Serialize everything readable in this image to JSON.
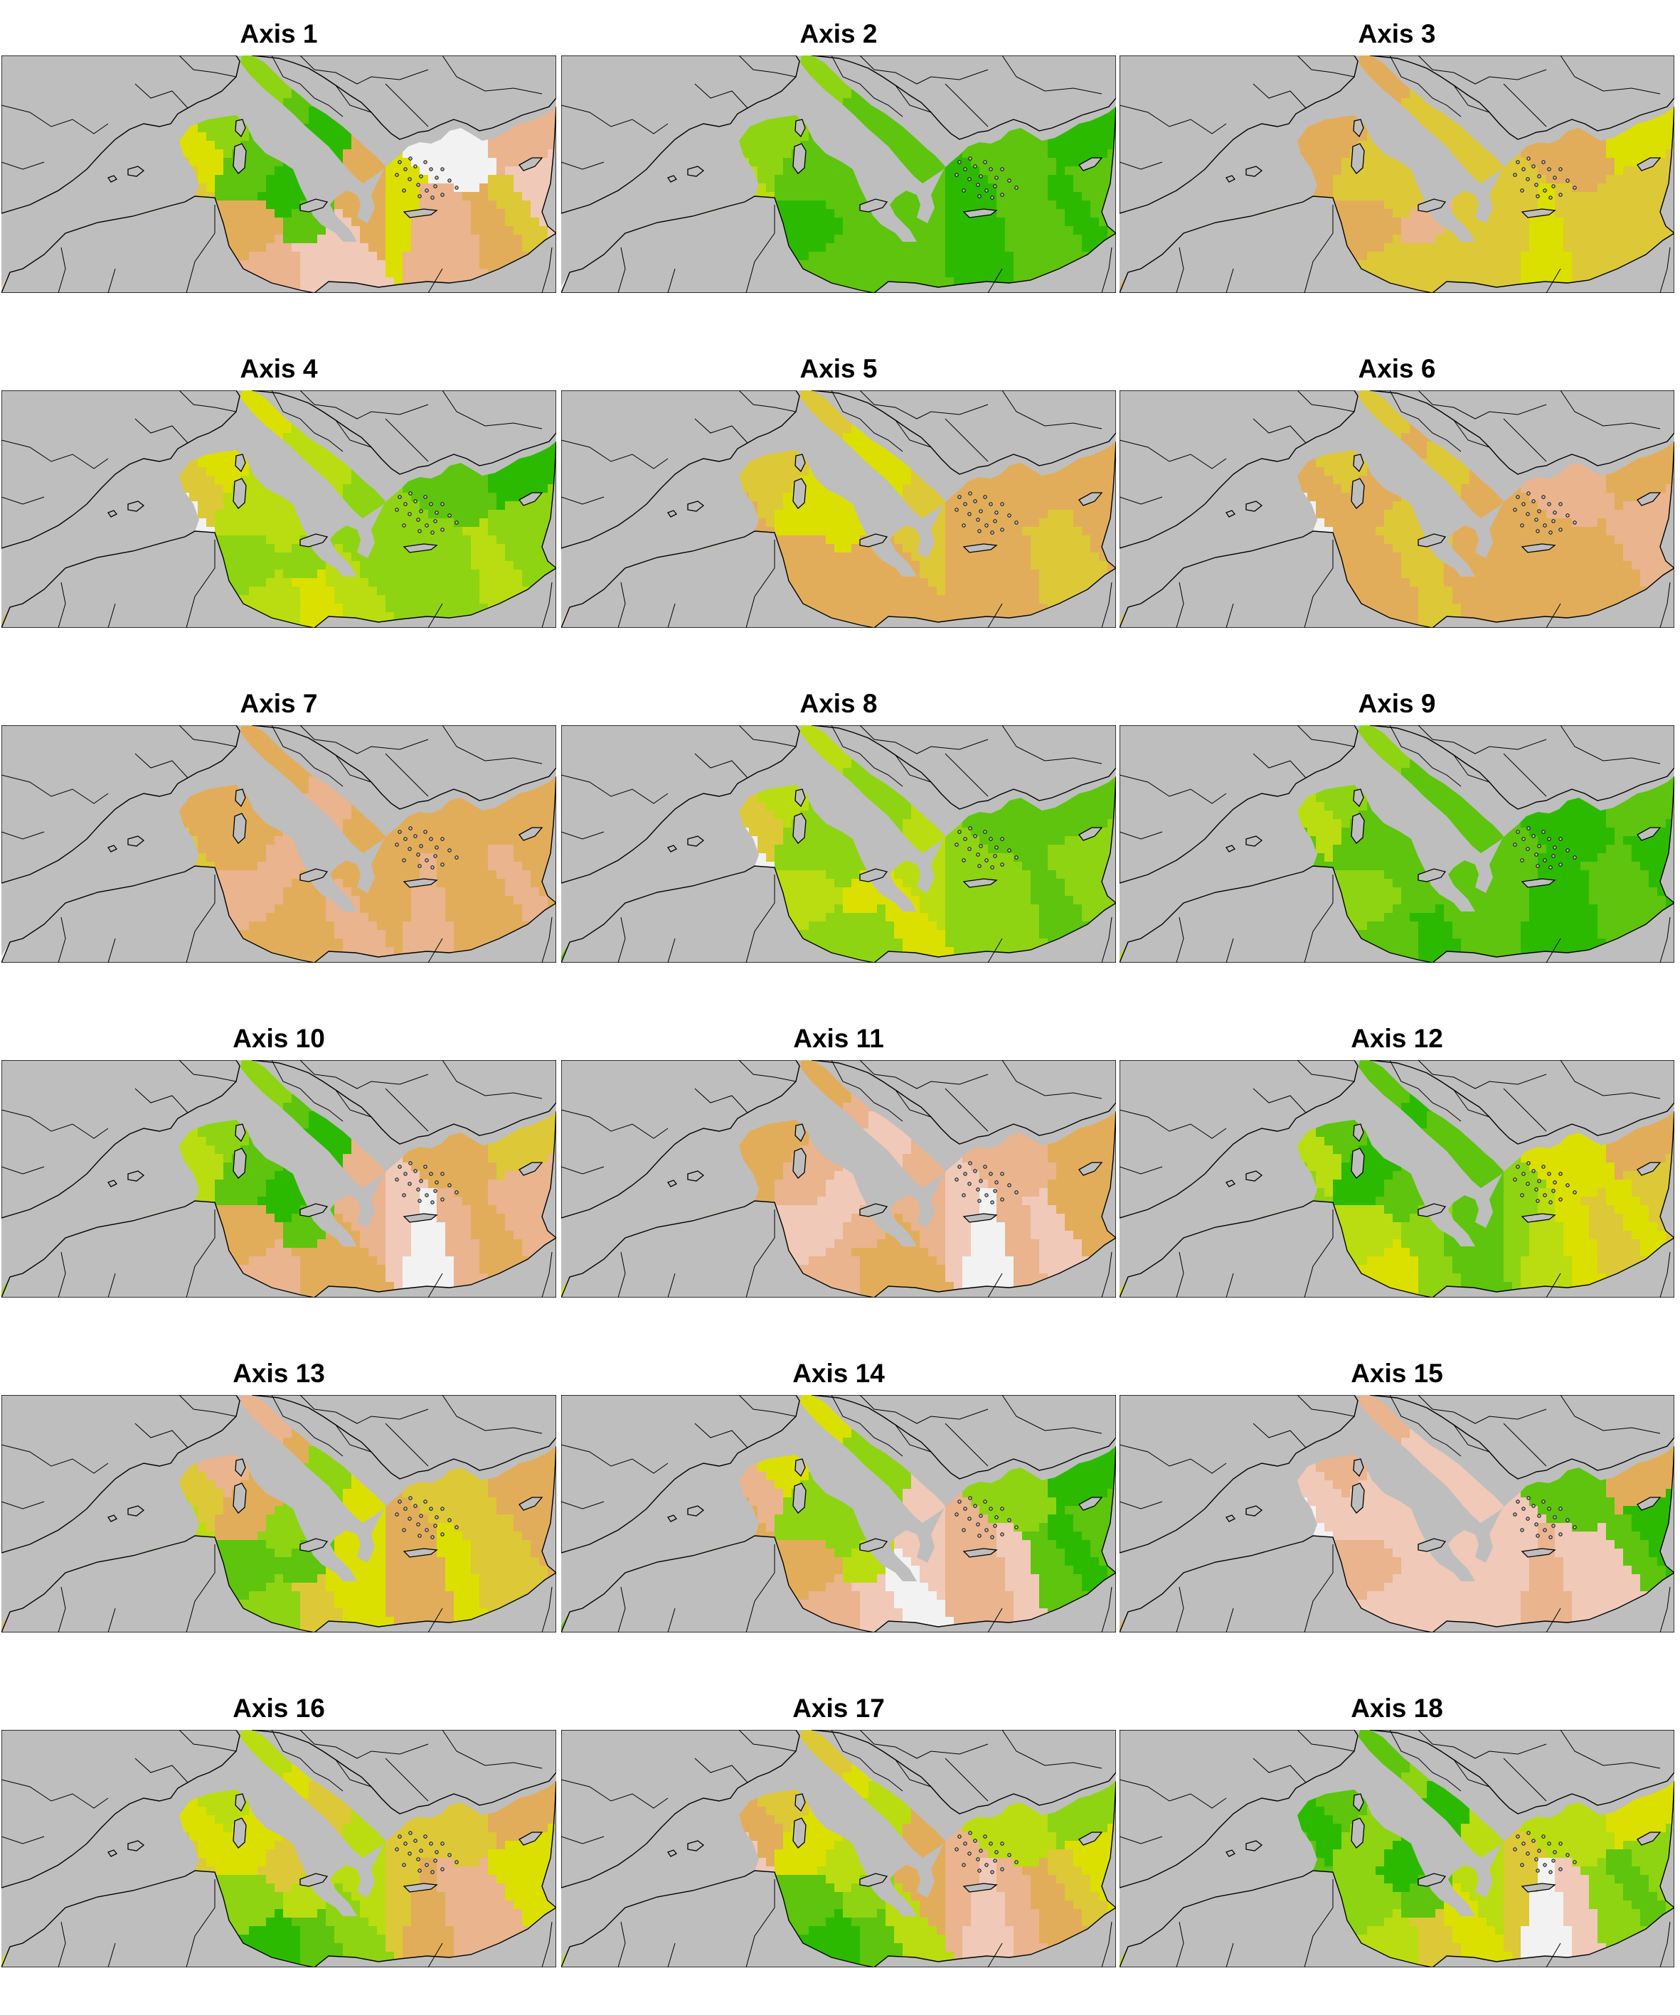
{
  "figure": {
    "land_color": "#bebebe",
    "border_color": "#000000",
    "palette": [
      "#f2f2f2",
      "#f0c9b8",
      "#e9b48e",
      "#e2ad5a",
      "#ddc838",
      "#dbe000",
      "#b9dd10",
      "#8ed412",
      "#5ec40e",
      "#2cba00"
    ],
    "panels": [
      {
        "title": "Axis 1",
        "tones": [
          1,
          2,
          1,
          0,
          3,
          4,
          5,
          7,
          8,
          9,
          8,
          3,
          2,
          1,
          1,
          3,
          5,
          2,
          2,
          3,
          4,
          1,
          0,
          2
        ]
      },
      {
        "title": "Axis 2",
        "tones": [
          0,
          3,
          4,
          5,
          6,
          6,
          7,
          7,
          8,
          8,
          8,
          9,
          8,
          8,
          8,
          8,
          9,
          9,
          8,
          8,
          9,
          8,
          8,
          9
        ]
      },
      {
        "title": "Axis 3",
        "tones": [
          3,
          8,
          9,
          7,
          4,
          3,
          3,
          3,
          4,
          4,
          2,
          3,
          4,
          4,
          4,
          4,
          4,
          5,
          4,
          4,
          4,
          4,
          3,
          5
        ]
      },
      {
        "title": "Axis 4",
        "tones": [
          3,
          4,
          8,
          9,
          1,
          0,
          4,
          5,
          6,
          6,
          7,
          7,
          6,
          5,
          6,
          7,
          7,
          7,
          7,
          6,
          7,
          7,
          8,
          9
        ]
      },
      {
        "title": "Axis 5",
        "tones": [
          1,
          2,
          1,
          7,
          8,
          3,
          4,
          4,
          5,
          5,
          3,
          3,
          3,
          3,
          3,
          4,
          3,
          3,
          3,
          4,
          4,
          3,
          3,
          3
        ]
      },
      {
        "title": "Axis 6",
        "tones": [
          4,
          3,
          2,
          0,
          1,
          0,
          3,
          4,
          3,
          4,
          4,
          3,
          3,
          4,
          3,
          3,
          3,
          3,
          3,
          3,
          2,
          2,
          2,
          3
        ]
      },
      {
        "title": "Axis 7",
        "tones": [
          0,
          1,
          7,
          8,
          9,
          4,
          3,
          3,
          3,
          2,
          3,
          2,
          3,
          3,
          2,
          3,
          3,
          2,
          3,
          3,
          2,
          3,
          3,
          3
        ]
      },
      {
        "title": "Axis 8",
        "tones": [
          8,
          9,
          7,
          5,
          2,
          0,
          4,
          6,
          7,
          7,
          5,
          6,
          7,
          7,
          5,
          6,
          7,
          7,
          7,
          8,
          7,
          7,
          8,
          8
        ]
      },
      {
        "title": "Axis 9",
        "tones": [
          6,
          7,
          3,
          7,
          7,
          8,
          6,
          7,
          8,
          8,
          8,
          7,
          8,
          9,
          8,
          8,
          8,
          9,
          9,
          8,
          8,
          9,
          9,
          8
        ]
      },
      {
        "title": "Axis 10",
        "tones": [
          7,
          7,
          6,
          8,
          7,
          6,
          6,
          7,
          8,
          9,
          8,
          3,
          2,
          3,
          3,
          2,
          1,
          0,
          2,
          3,
          2,
          2,
          3,
          4
        ]
      },
      {
        "title": "Axis 11",
        "tones": [
          5,
          8,
          9,
          7,
          4,
          3,
          3,
          3,
          2,
          1,
          2,
          1,
          2,
          3,
          3,
          2,
          1,
          0,
          2,
          1,
          3,
          3,
          2,
          3
        ]
      },
      {
        "title": "Axis 12",
        "tones": [
          5,
          6,
          7,
          9,
          8,
          7,
          6,
          8,
          9,
          8,
          7,
          6,
          5,
          7,
          8,
          8,
          7,
          6,
          5,
          4,
          5,
          4,
          5,
          3
        ]
      },
      {
        "title": "Axis 13",
        "tones": [
          3,
          2,
          1,
          8,
          9,
          6,
          4,
          2,
          3,
          7,
          8,
          8,
          7,
          4,
          5,
          5,
          3,
          3,
          5,
          4,
          4,
          3,
          4,
          3
        ]
      },
      {
        "title": "Axis 14",
        "tones": [
          8,
          9,
          7,
          6,
          8,
          3,
          2,
          5,
          7,
          7,
          6,
          3,
          2,
          1,
          0,
          1,
          2,
          2,
          1,
          8,
          9,
          8,
          7,
          9
        ]
      },
      {
        "title": "Axis 15",
        "tones": [
          3,
          2,
          2,
          1,
          1,
          0,
          1,
          2,
          1,
          1,
          1,
          2,
          1,
          1,
          1,
          1,
          1,
          2,
          1,
          1,
          8,
          9,
          8,
          3
        ]
      },
      {
        "title": "Axis 16",
        "tones": [
          5,
          4,
          3,
          3,
          3,
          4,
          5,
          6,
          5,
          4,
          6,
          7,
          9,
          8,
          7,
          6,
          4,
          3,
          2,
          2,
          5,
          5,
          4,
          3
        ]
      },
      {
        "title": "Axis 17",
        "tones": [
          6,
          5,
          2,
          1,
          2,
          1,
          3,
          4,
          5,
          6,
          7,
          8,
          9,
          8,
          6,
          3,
          2,
          1,
          2,
          3,
          4,
          5,
          6,
          7
        ]
      },
      {
        "title": "Axis 18",
        "tones": [
          6,
          7,
          3,
          2,
          3,
          8,
          9,
          8,
          7,
          9,
          8,
          7,
          6,
          4,
          5,
          6,
          4,
          0,
          1,
          7,
          8,
          7,
          6,
          5
        ]
      }
    ]
  }
}
